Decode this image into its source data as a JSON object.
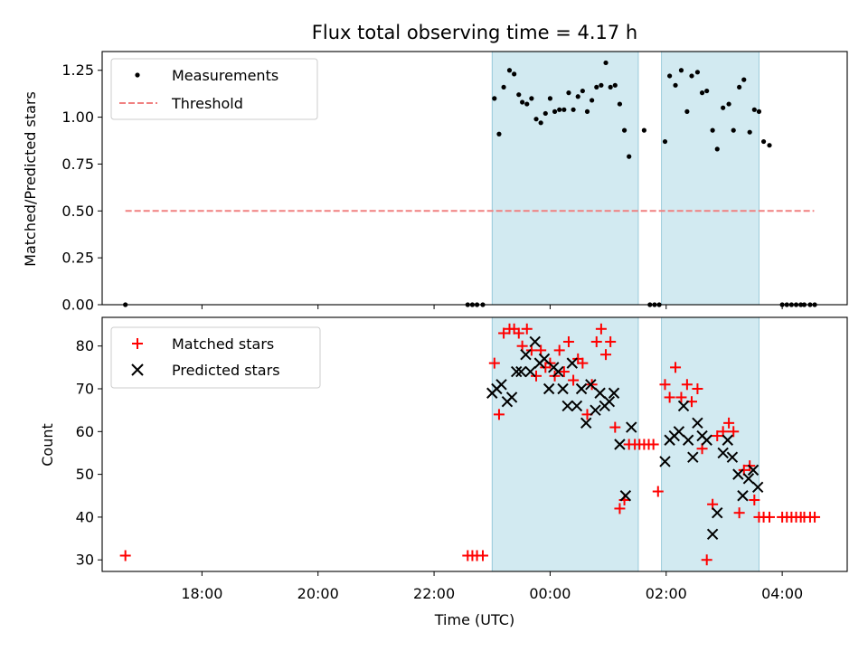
{
  "figure": {
    "title": "Flux total observing time = 4.17 h",
    "xlabel": "Time (UTC)",
    "xticks": [
      "18:00",
      "20:00",
      "22:00",
      "00:00",
      "02:00",
      "04:00"
    ]
  },
  "chart_data": [
    {
      "type": "scatter",
      "title": "Flux total observing time = 4.17 h",
      "ylabel": "Matched/Predicted stars",
      "xunit": "hours since 16:00 UTC",
      "xlim": [
        0.28,
        13.12
      ],
      "ylim": [
        0.0,
        1.35
      ],
      "yticks": [
        0.0,
        0.25,
        0.5,
        0.75,
        1.0,
        1.25
      ],
      "ytick_labels": [
        "0.00",
        "0.25",
        "0.50",
        "0.75",
        "1.00",
        "1.25"
      ],
      "legend": "top-left",
      "observing_windows": [
        [
          7.0,
          9.52
        ],
        [
          9.92,
          11.6
        ]
      ],
      "threshold": {
        "name": "Threshold",
        "value": 0.5,
        "x": [
          0.68,
          12.55
        ],
        "color": "#f08080"
      },
      "series": [
        {
          "name": "Measurements",
          "color": "#000000",
          "marker": "dot",
          "x": [
            0.68,
            6.58,
            6.66,
            6.74,
            6.84,
            7.04,
            7.12,
            7.2,
            7.3,
            7.38,
            7.46,
            7.52,
            7.6,
            7.68,
            7.76,
            7.84,
            7.92,
            8.0,
            8.08,
            8.16,
            8.24,
            8.32,
            8.4,
            8.48,
            8.56,
            8.64,
            8.72,
            8.8,
            8.88,
            8.96,
            9.04,
            9.12,
            9.2,
            9.28,
            9.36,
            9.62,
            9.72,
            9.8,
            9.88,
            9.98,
            10.06,
            10.16,
            10.26,
            10.36,
            10.44,
            10.54,
            10.62,
            10.7,
            10.8,
            10.88,
            10.98,
            11.08,
            11.16,
            11.26,
            11.34,
            11.44,
            11.52,
            11.6,
            11.68,
            11.78,
            12.0,
            12.08,
            12.16,
            12.24,
            12.32,
            12.38,
            12.48,
            12.56
          ],
          "y": [
            0.0,
            0.0,
            0.0,
            0.0,
            0.0,
            1.1,
            0.91,
            1.16,
            1.25,
            1.23,
            1.12,
            1.08,
            1.07,
            1.1,
            0.99,
            0.97,
            1.02,
            1.1,
            1.03,
            1.04,
            1.04,
            1.13,
            1.04,
            1.11,
            1.14,
            1.03,
            1.09,
            1.16,
            1.17,
            1.29,
            1.16,
            1.17,
            1.07,
            0.93,
            0.79,
            0.93,
            0.0,
            0.0,
            0.0,
            0.87,
            1.22,
            1.17,
            1.25,
            1.03,
            1.22,
            1.24,
            1.13,
            1.14,
            0.93,
            0.83,
            1.05,
            1.07,
            0.93,
            1.16,
            1.2,
            0.92,
            1.04,
            1.03,
            0.87,
            0.85,
            0.0,
            0.0,
            0.0,
            0.0,
            0.0,
            0.0,
            0.0,
            0.0
          ]
        }
      ]
    },
    {
      "type": "scatter",
      "ylabel": "Count",
      "xlabel": "Time (UTC)",
      "xunit": "hours since 16:00 UTC",
      "xlim": [
        0.28,
        13.12
      ],
      "ylim": [
        27.3,
        86.7
      ],
      "yticks": [
        30,
        40,
        50,
        60,
        70,
        80
      ],
      "ytick_labels": [
        "30",
        "40",
        "50",
        "60",
        "70",
        "80"
      ],
      "legend": "top-left",
      "observing_windows": [
        [
          7.0,
          9.52
        ],
        [
          9.92,
          11.6
        ]
      ],
      "series": [
        {
          "name": "Matched stars",
          "color": "#ff0000",
          "marker": "plus",
          "x": [
            0.68,
            6.58,
            6.66,
            6.74,
            6.84,
            7.04,
            7.12,
            7.2,
            7.3,
            7.38,
            7.46,
            7.52,
            7.6,
            7.68,
            7.76,
            7.84,
            7.92,
            8.0,
            8.08,
            8.16,
            8.24,
            8.32,
            8.4,
            8.48,
            8.56,
            8.64,
            8.72,
            8.8,
            8.88,
            8.96,
            9.04,
            9.12,
            9.2,
            9.28,
            9.36,
            9.46,
            9.54,
            9.62,
            9.7,
            9.78,
            9.86,
            9.98,
            10.06,
            10.16,
            10.26,
            10.36,
            10.44,
            10.54,
            10.62,
            10.7,
            10.8,
            10.88,
            10.98,
            11.08,
            11.16,
            11.26,
            11.34,
            11.44,
            11.52,
            11.6,
            11.68,
            11.78,
            12.0,
            12.08,
            12.16,
            12.24,
            12.32,
            12.38,
            12.48,
            12.56
          ],
          "y": [
            31,
            31,
            31,
            31,
            31,
            76,
            64,
            83,
            84,
            84,
            83,
            80,
            84,
            79,
            73,
            79,
            75,
            76,
            73,
            79,
            74,
            81,
            72,
            77,
            76,
            64,
            71,
            81,
            84,
            78,
            81,
            61,
            42,
            44,
            57,
            57,
            57,
            57,
            57,
            57,
            46,
            71,
            68,
            75,
            68,
            71,
            67,
            70,
            56,
            30,
            43,
            59,
            60,
            62,
            60,
            41,
            51,
            52,
            44,
            40,
            40,
            40,
            40,
            40,
            40,
            40,
            40,
            40,
            40,
            40
          ]
        },
        {
          "name": "Predicted stars",
          "color": "#000000",
          "marker": "x",
          "x": [
            7.0,
            7.08,
            7.16,
            7.26,
            7.34,
            7.42,
            7.5,
            7.58,
            7.66,
            7.74,
            7.82,
            7.9,
            7.98,
            8.06,
            8.14,
            8.22,
            8.3,
            8.38,
            8.46,
            8.54,
            8.62,
            8.7,
            8.78,
            8.86,
            8.94,
            9.02,
            9.1,
            9.2,
            9.3,
            9.4,
            9.98,
            10.06,
            10.14,
            10.22,
            10.3,
            10.38,
            10.46,
            10.54,
            10.62,
            10.7,
            10.8,
            10.88,
            10.98,
            11.06,
            11.14,
            11.24,
            11.32,
            11.42,
            11.5,
            11.58
          ],
          "y": [
            69,
            70,
            71,
            67,
            68,
            74,
            74,
            78,
            74,
            81,
            76,
            77,
            70,
            75,
            74,
            70,
            66,
            76,
            66,
            70,
            62,
            71,
            65,
            69,
            66,
            67,
            69,
            57,
            45,
            61,
            53,
            58,
            59,
            60,
            66,
            58,
            54,
            62,
            59,
            58,
            36,
            41,
            55,
            58,
            54,
            50,
            45,
            49,
            51,
            47
          ]
        }
      ]
    }
  ]
}
